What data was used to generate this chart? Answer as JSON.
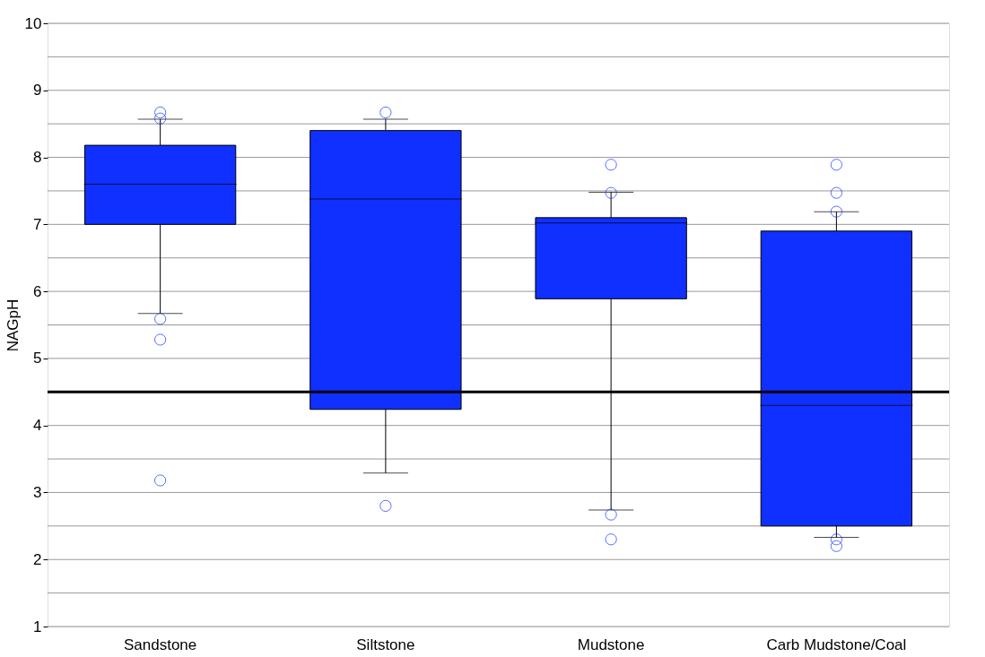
{
  "chart_data": {
    "type": "box",
    "ylabel": "NAGpH",
    "categories": [
      "Sandstone",
      "Siltstone",
      "Mudstone",
      "Carb Mudstone/Coal"
    ],
    "series": [
      {
        "color": "#1030ff",
        "boxes": [
          {
            "low": 5.67,
            "q1": 7.0,
            "median": 7.6,
            "q3": 8.18,
            "high": 8.57,
            "outliers": [
              8.67,
              8.58,
              5.59,
              5.28,
              3.18
            ]
          },
          {
            "low": 3.29,
            "q1": 4.24,
            "median": 7.38,
            "q3": 8.4,
            "high": 8.57,
            "outliers": [
              8.67,
              2.8
            ]
          },
          {
            "low": 2.74,
            "q1": 5.89,
            "median": 7.02,
            "q3": 7.1,
            "high": 7.48,
            "outliers": [
              7.89,
              7.47,
              2.67,
              2.3
            ]
          },
          {
            "low": 2.33,
            "q1": 2.5,
            "median": 4.3,
            "q3": 6.9,
            "high": 7.19,
            "outliers": [
              7.89,
              7.47,
              7.19,
              2.3,
              2.2
            ]
          }
        ]
      }
    ],
    "ylim": [
      1,
      10
    ],
    "yticks": [
      1,
      {
        "value": 1.5,
        "label": null
      },
      2,
      {
        "value": 2.5,
        "label": null
      },
      3,
      {
        "value": 3.5,
        "label": null
      },
      4,
      {
        "value": 4.5,
        "label": null
      },
      5,
      {
        "value": 5.5,
        "label": null
      },
      6,
      {
        "value": 6.5,
        "label": null
      },
      7,
      {
        "value": 7.5,
        "label": null
      },
      8,
      {
        "value": 8.5,
        "label": null
      },
      9,
      {
        "value": 9.5,
        "label": null
      },
      10
    ],
    "grid": true,
    "ref_lines": [
      {
        "axis": "y",
        "value": 4.5,
        "color": "#000000"
      }
    ]
  }
}
